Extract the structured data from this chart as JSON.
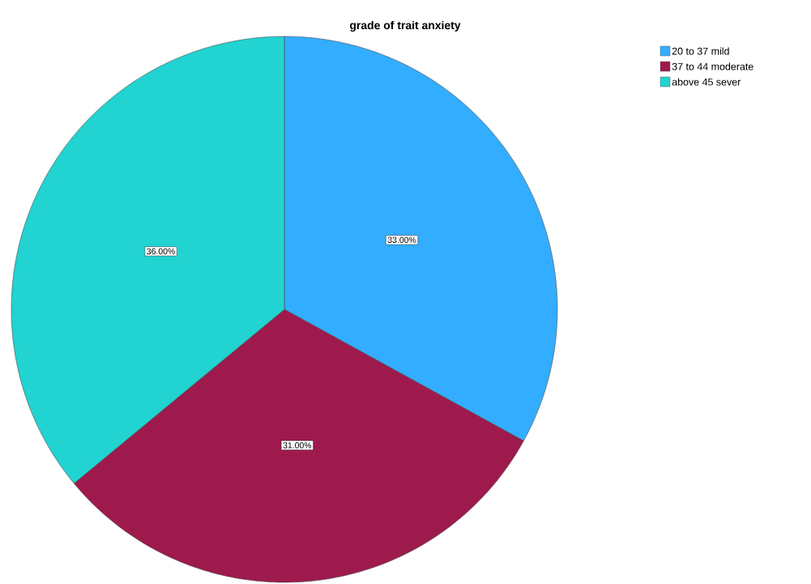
{
  "chart_data": {
    "type": "pie",
    "title": "grade of trait anxiety",
    "categories": [
      "20  to  37 mild",
      "37 to  44 moderate",
      "above 45 sever"
    ],
    "values": [
      33,
      31,
      36
    ],
    "colors": [
      "#33adff",
      "#9e1a4d",
      "#21d3d1"
    ],
    "value_labels": [
      "33.00%",
      "31.00%",
      "36.00%"
    ],
    "legend": "top right"
  }
}
